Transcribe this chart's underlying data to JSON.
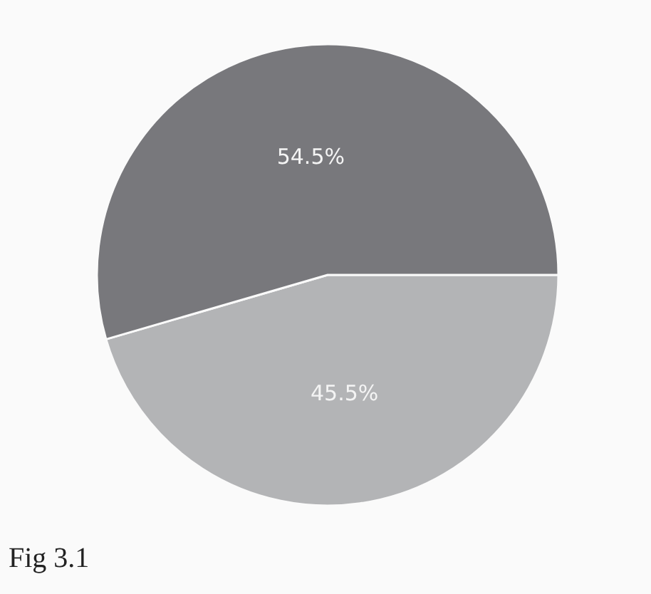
{
  "chart_data": {
    "type": "pie",
    "categories": [
      null,
      null
    ],
    "values": [
      45.5,
      54.5
    ],
    "colors": [
      "#b3b4b6",
      "#78787c"
    ],
    "value_labels": [
      "45.5%",
      "54.5%"
    ],
    "annotations": [
      "Fig 3.1"
    ]
  }
}
